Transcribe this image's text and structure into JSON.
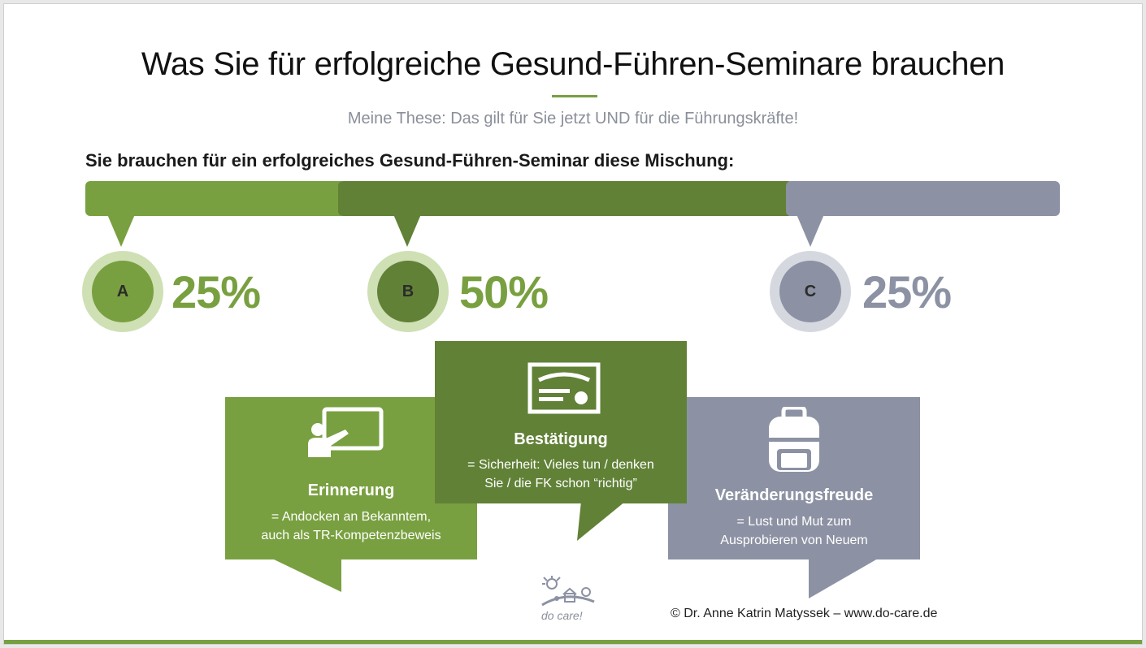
{
  "title": "Was Sie für erfolgreiche Gesund-Führen-Seminare brauchen",
  "subtitle": "Meine These: Das gilt für Sie jetzt UND für die Führungskräfte!",
  "lead": "Sie brauchen für ein erfolgreiches Gesund-Führen-Seminar diese Mischung:",
  "colors": {
    "green_light": "#79a040",
    "green_dark": "#618137",
    "gray": "#8c92a3",
    "green_ring": "#cfe0b4",
    "gray_ring": "#d5d8df"
  },
  "segments": [
    {
      "letter": "A",
      "percent": "25%",
      "share": 0.25
    },
    {
      "letter": "B",
      "percent": "50%",
      "share": 0.5
    },
    {
      "letter": "C",
      "percent": "25%",
      "share": 0.25
    }
  ],
  "cards": {
    "erinnerung": {
      "icon": "teacher-board-icon",
      "title": "Erinnerung",
      "line1": "= Andocken an Bekanntem,",
      "line2": "auch als TR-Kompetenzbeweis"
    },
    "bestaetigung": {
      "icon": "certificate-icon",
      "title": "Bestätigung",
      "line1": "= Sicherheit: Vieles tun / denken",
      "line2": "Sie / die FK schon “richtig”"
    },
    "veraenderung": {
      "icon": "backpack-icon",
      "title": "Veränderungsfreude",
      "line1": "= Lust und Mut zum",
      "line2": "Ausprobieren von Neuem"
    }
  },
  "footer": {
    "logo_text": "do care!",
    "copyright": "© Dr. Anne Katrin Matyssek – www.do-care.de"
  }
}
